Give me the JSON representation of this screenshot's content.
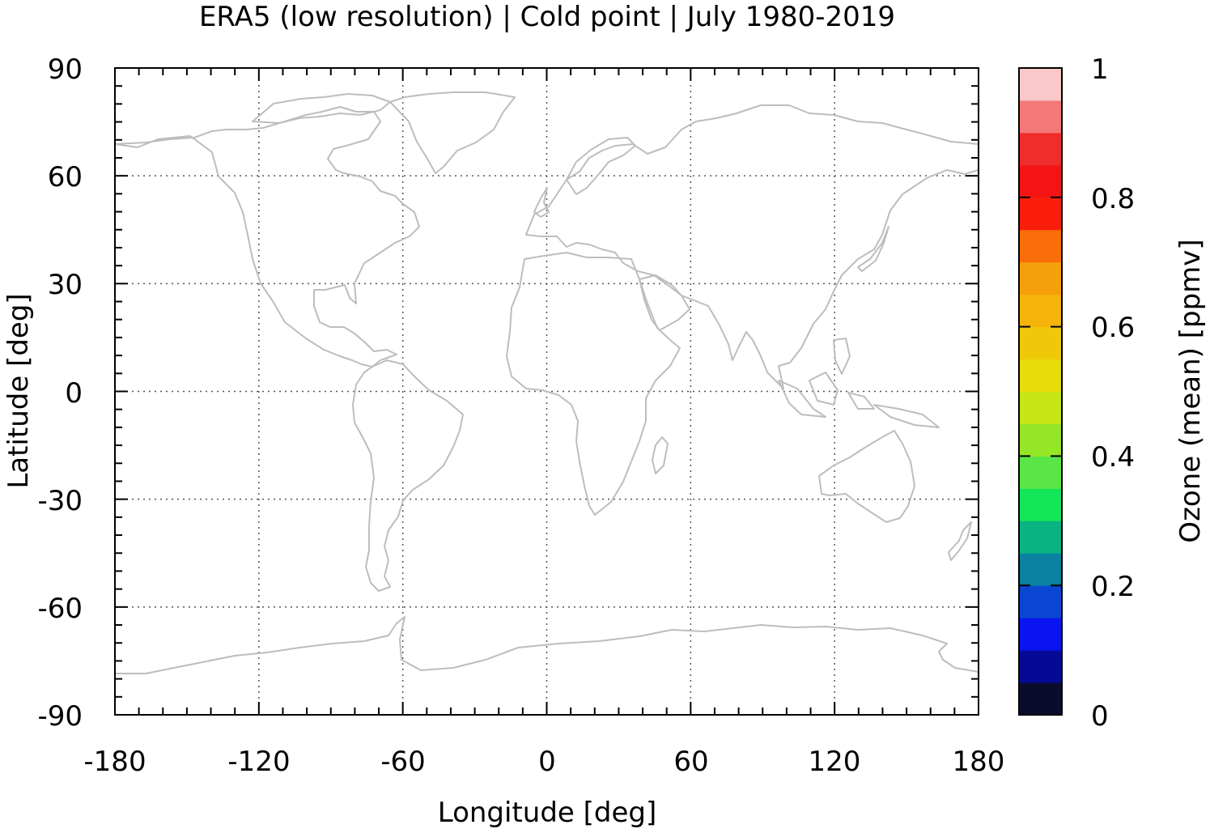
{
  "chart_data": {
    "type": "heatmap",
    "title": "ERA5 (low resolution) | Cold point | July 1980-2019",
    "xlabel": "Longitude [deg]",
    "ylabel": "Latitude [deg]",
    "xlim": [
      -180,
      180
    ],
    "ylim": [
      -90,
      90
    ],
    "x_ticks": [
      -180,
      -120,
      -60,
      0,
      60,
      120,
      180
    ],
    "y_ticks": [
      -90,
      -60,
      -30,
      0,
      30,
      60,
      90
    ],
    "x_tick_labels": [
      "-180",
      "-120",
      "-60",
      "0",
      "60",
      "120",
      "180"
    ],
    "y_tick_labels": [
      "-90",
      "-60",
      "-30",
      "0",
      "30",
      "60",
      "90"
    ],
    "grid": true,
    "coastlines": true,
    "coastline_color": "#bdbdbd",
    "colorbar": {
      "label": "Ozone (mean) [ppmv]",
      "range": [
        0,
        1
      ],
      "ticks": [
        0,
        0.2,
        0.4,
        0.6,
        0.8,
        1
      ],
      "tick_labels": [
        "0",
        "0.2",
        "0.4",
        "0.6",
        "0.8",
        "1"
      ],
      "colors": [
        "#0b0b2e",
        "#050a96",
        "#0a14f0",
        "#0a46d2",
        "#0a82a0",
        "#0ab482",
        "#14e65a",
        "#5ae646",
        "#96e628",
        "#c8e614",
        "#e6dc0a",
        "#f0c80a",
        "#f5b40a",
        "#f5a00a",
        "#fa6e0a",
        "#fa1e0a",
        "#f51414",
        "#f02d2d",
        "#f57878",
        "#fac8c8"
      ]
    }
  }
}
